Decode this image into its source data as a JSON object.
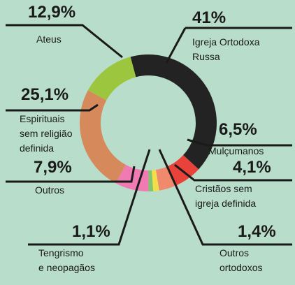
{
  "chart_data": {
    "type": "pie",
    "hole": true,
    "categories": [
      "Igreja Ortodoxa\nRussa",
      "Mulçumanos",
      "Cristãos sem\nigreja definida",
      "Outros\nortodoxos",
      "Tengrismo\ne neopagãos",
      "Outros",
      "Espirituais\nsem religião\ndefinida",
      "Ateus"
    ],
    "values": [
      41,
      6.5,
      4.1,
      1.4,
      1.1,
      7.9,
      25.1,
      12.9
    ],
    "value_labels": [
      "41%",
      "6,5%",
      "4,1%",
      "1,4%",
      "1,1%",
      "7,9%",
      "25,1%",
      "12,9%"
    ],
    "colors": [
      "#232323",
      "#e8423a",
      "#ef8a6c",
      "#f3de4a",
      "#7fc46e",
      "#f07ab2",
      "#d68a5c",
      "#9cc63e"
    ]
  }
}
